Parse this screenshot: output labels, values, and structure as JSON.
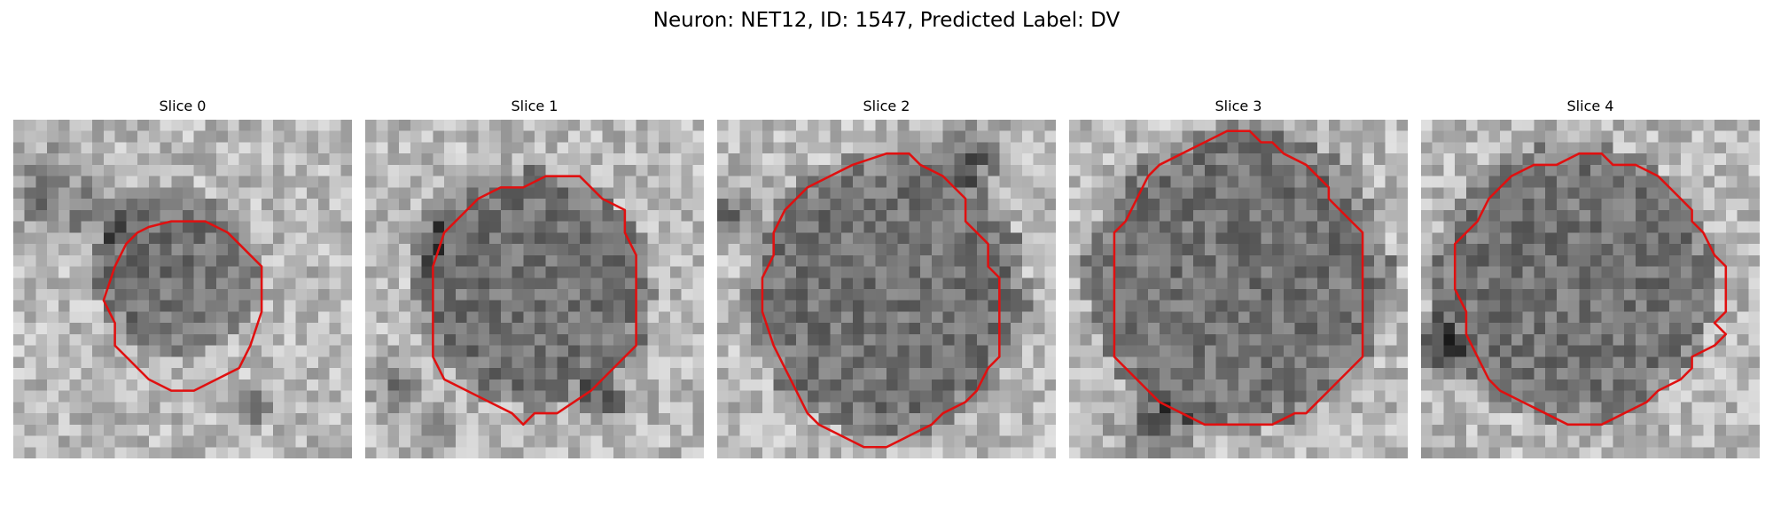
{
  "figure": {
    "title": "Neuron: NET12, ID: 1547, Predicted Label: DV"
  },
  "colors": {
    "contour": "#e01010",
    "background": "#ffffff"
  },
  "image_grid": {
    "rows": 30,
    "cols": 30,
    "colormap": "grayscale"
  },
  "slices": [
    {
      "label": "Slice 0",
      "seed": 11,
      "cell_center": [
        14.5,
        13.5
      ],
      "cell_radius": 6.0,
      "contour": [
        [
          14,
          9
        ],
        [
          17,
          9
        ],
        [
          19,
          10
        ],
        [
          20,
          11
        ],
        [
          21,
          12
        ],
        [
          22,
          13
        ],
        [
          22,
          15
        ],
        [
          22,
          17
        ],
        [
          21,
          20
        ],
        [
          20,
          22
        ],
        [
          18,
          23
        ],
        [
          16,
          24
        ],
        [
          14,
          24
        ],
        [
          12,
          23
        ],
        [
          11,
          22
        ],
        [
          10,
          21
        ],
        [
          9,
          20
        ],
        [
          9,
          18
        ],
        [
          8,
          16
        ],
        [
          9,
          13
        ],
        [
          10,
          11
        ],
        [
          11,
          10
        ],
        [
          12,
          9.5
        ]
      ]
    },
    {
      "label": "Slice 1",
      "seed": 23,
      "cell_center": [
        15.0,
        15.0
      ],
      "cell_radius": 9.0,
      "contour": [
        [
          16,
          5
        ],
        [
          19,
          5
        ],
        [
          21,
          7
        ],
        [
          23,
          8
        ],
        [
          23,
          10
        ],
        [
          24,
          12
        ],
        [
          24,
          15
        ],
        [
          24,
          18
        ],
        [
          24,
          20
        ],
        [
          23,
          21
        ],
        [
          22,
          22
        ],
        [
          20,
          24
        ],
        [
          17,
          26
        ],
        [
          15,
          26
        ],
        [
          14,
          27
        ],
        [
          13,
          26
        ],
        [
          11,
          25
        ],
        [
          9,
          24
        ],
        [
          7,
          23
        ],
        [
          6,
          21
        ],
        [
          6,
          19
        ],
        [
          6,
          16
        ],
        [
          6,
          13
        ],
        [
          7,
          10
        ],
        [
          8,
          9
        ],
        [
          9,
          8
        ],
        [
          10,
          7
        ],
        [
          12,
          6
        ],
        [
          14,
          6
        ]
      ]
    },
    {
      "label": "Slice 2",
      "seed": 37,
      "cell_center": [
        15.0,
        15.5
      ],
      "cell_radius": 11.0,
      "contour": [
        [
          15,
          3
        ],
        [
          17,
          3
        ],
        [
          18,
          4
        ],
        [
          20,
          5
        ],
        [
          21,
          6
        ],
        [
          22,
          7
        ],
        [
          22,
          8
        ],
        [
          22,
          9
        ],
        [
          23,
          10
        ],
        [
          24,
          11
        ],
        [
          24,
          13
        ],
        [
          25,
          14
        ],
        [
          25,
          16
        ],
        [
          25,
          18
        ],
        [
          25,
          21
        ],
        [
          24,
          22
        ],
        [
          23,
          24
        ],
        [
          22,
          25
        ],
        [
          20,
          26
        ],
        [
          19,
          27
        ],
        [
          17,
          28
        ],
        [
          15,
          29
        ],
        [
          13,
          29
        ],
        [
          11,
          28
        ],
        [
          9,
          27
        ],
        [
          8,
          26
        ],
        [
          7,
          24
        ],
        [
          6,
          22
        ],
        [
          5,
          20
        ],
        [
          4,
          17
        ],
        [
          4,
          14
        ],
        [
          5,
          12
        ],
        [
          5,
          10
        ],
        [
          6,
          8
        ],
        [
          7,
          7
        ],
        [
          8,
          6
        ],
        [
          10,
          5
        ],
        [
          12,
          4
        ]
      ]
    },
    {
      "label": "Slice 3",
      "seed": 51,
      "cell_center": [
        15.0,
        14.0
      ],
      "cell_radius": 12.0,
      "contour": [
        [
          14,
          1
        ],
        [
          16,
          1
        ],
        [
          17,
          2
        ],
        [
          18,
          2
        ],
        [
          19,
          3
        ],
        [
          21,
          4
        ],
        [
          22,
          5
        ],
        [
          23,
          6
        ],
        [
          23,
          7
        ],
        [
          24,
          8
        ],
        [
          25,
          9
        ],
        [
          26,
          10
        ],
        [
          26,
          13
        ],
        [
          26,
          16
        ],
        [
          26,
          19
        ],
        [
          26,
          21
        ],
        [
          25,
          22
        ],
        [
          24,
          23
        ],
        [
          23,
          24
        ],
        [
          22,
          25
        ],
        [
          21,
          26
        ],
        [
          20,
          26
        ],
        [
          18,
          27
        ],
        [
          17,
          27
        ],
        [
          15,
          27
        ],
        [
          12,
          27
        ],
        [
          10,
          26
        ],
        [
          8,
          25
        ],
        [
          7,
          24
        ],
        [
          6,
          23
        ],
        [
          5,
          22
        ],
        [
          4,
          21
        ],
        [
          4,
          18
        ],
        [
          4,
          15
        ],
        [
          4,
          12
        ],
        [
          4,
          10
        ],
        [
          5,
          9
        ],
        [
          6,
          7
        ],
        [
          7,
          5
        ],
        [
          8,
          4
        ],
        [
          10,
          3
        ],
        [
          12,
          2
        ]
      ]
    },
    {
      "label": "Slice 4",
      "seed": 67,
      "cell_center": [
        13.5,
        14.5
      ],
      "cell_radius": 11.0,
      "contour": [
        [
          14,
          3
        ],
        [
          16,
          3
        ],
        [
          17,
          4
        ],
        [
          19,
          4
        ],
        [
          21,
          5
        ],
        [
          22,
          6
        ],
        [
          23,
          7
        ],
        [
          24,
          8
        ],
        [
          24,
          9
        ],
        [
          25,
          10
        ],
        [
          26,
          12
        ],
        [
          27,
          13
        ],
        [
          27,
          15
        ],
        [
          27,
          17
        ],
        [
          26,
          18
        ],
        [
          27,
          19
        ],
        [
          26,
          20
        ],
        [
          24,
          21
        ],
        [
          24,
          22
        ],
        [
          23,
          23
        ],
        [
          21,
          24
        ],
        [
          20,
          25
        ],
        [
          18,
          26
        ],
        [
          16,
          27
        ],
        [
          13,
          27
        ],
        [
          11,
          26
        ],
        [
          9,
          25
        ],
        [
          7,
          24
        ],
        [
          6,
          23
        ],
        [
          5,
          21
        ],
        [
          4,
          19
        ],
        [
          4,
          17
        ],
        [
          3,
          15
        ],
        [
          3,
          13
        ],
        [
          3,
          11
        ],
        [
          4,
          10
        ],
        [
          5,
          9
        ],
        [
          6,
          7
        ],
        [
          7,
          6
        ],
        [
          8,
          5
        ],
        [
          10,
          4
        ],
        [
          12,
          4
        ]
      ]
    }
  ]
}
